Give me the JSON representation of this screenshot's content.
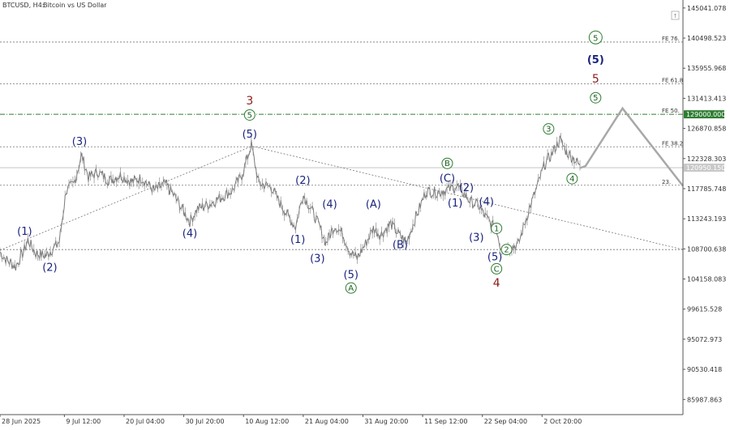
{
  "header": {
    "symbol": "BTCUSD, H4:",
    "description": "Bitcoin vs US Dollar"
  },
  "chart_data": {
    "type": "line",
    "series_style": "candlestick-approximated",
    "title": "",
    "xlabel": "",
    "ylabel": "",
    "ylim": [
      83700,
      146000
    ],
    "y_ticks": [
      145041.078,
      140498.523,
      135955.968,
      131413.413,
      126870.858,
      122328.303,
      117785.748,
      113243.193,
      108700.638,
      104158.083,
      99615.528,
      95072.973,
      90530.418,
      85987.863
    ],
    "x_ticks": [
      {
        "label": "28 Jun 2025",
        "t": 0
      },
      {
        "label": "9 Jul 12:00",
        "t": 11.5
      },
      {
        "label": "20 Jul 04:00",
        "t": 22.17
      },
      {
        "label": "30 Jul 20:00",
        "t": 32.83
      },
      {
        "label": "10 Aug 12:00",
        "t": 43.5
      },
      {
        "label": "21 Aug 04:00",
        "t": 54.17
      },
      {
        "label": "31 Aug 20:00",
        "t": 64.83
      },
      {
        "label": "11 Sep 12:00",
        "t": 75.5
      },
      {
        "label": "22 Sep 04:00",
        "t": 86.17
      },
      {
        "label": "2 Oct 20:00",
        "t": 96.83
      }
    ],
    "x_range_days": [
      0,
      122
    ],
    "price_path": [
      [
        0,
        108200
      ],
      [
        1.2,
        107000
      ],
      [
        2.8,
        106000
      ],
      [
        4.2,
        108300
      ],
      [
        5,
        110000
      ],
      [
        6.4,
        108000
      ],
      [
        8.2,
        107700
      ],
      [
        9.8,
        109000
      ],
      [
        10.6,
        109800
      ],
      [
        11.8,
        117500
      ],
      [
        13.2,
        118500
      ],
      [
        14.6,
        122800
      ],
      [
        15.8,
        119500
      ],
      [
        17.5,
        120300
      ],
      [
        19.5,
        119000
      ],
      [
        21.5,
        119800
      ],
      [
        23.5,
        118800
      ],
      [
        25.3,
        119400
      ],
      [
        27.5,
        117500
      ],
      [
        29.5,
        118500
      ],
      [
        31.3,
        116500
      ],
      [
        33.9,
        112800
      ],
      [
        35.3,
        114800
      ],
      [
        37.5,
        115500
      ],
      [
        39.5,
        116500
      ],
      [
        41.5,
        117500
      ],
      [
        43.2,
        119800
      ],
      [
        44.9,
        124400
      ],
      [
        46.2,
        118600
      ],
      [
        48.5,
        118000
      ],
      [
        50,
        115600
      ],
      [
        51.8,
        113200
      ],
      [
        52.8,
        112000
      ],
      [
        54.1,
        116900
      ],
      [
        55.8,
        114400
      ],
      [
        57.2,
        111800
      ],
      [
        58.2,
        109600
      ],
      [
        59.8,
        112200
      ],
      [
        61.2,
        111000
      ],
      [
        62.5,
        108300
      ],
      [
        63.8,
        107300
      ],
      [
        65.3,
        109500
      ],
      [
        66.7,
        111800
      ],
      [
        68,
        110800
      ],
      [
        69.8,
        112500
      ],
      [
        71.3,
        110800
      ],
      [
        72.6,
        109700
      ],
      [
        74.1,
        113100
      ],
      [
        76.1,
        117400
      ],
      [
        78.3,
        117200
      ],
      [
        80.2,
        117700
      ],
      [
        81.6,
        118200
      ],
      [
        82.6,
        117300
      ],
      [
        84.1,
        115800
      ],
      [
        85.5,
        115200
      ],
      [
        86.5,
        113800
      ],
      [
        88.4,
        111800
      ],
      [
        88.7,
        111900
      ],
      [
        89.3,
        109300
      ],
      [
        90.2,
        108700
      ],
      [
        91.6,
        109000
      ],
      [
        92.6,
        109400
      ],
      [
        94,
        113300
      ],
      [
        95.7,
        117500
      ],
      [
        97.3,
        121500
      ],
      [
        98.5,
        122900
      ],
      [
        100,
        125200
      ],
      [
        101.2,
        123300
      ],
      [
        102.4,
        122400
      ],
      [
        103.6,
        121300
      ]
    ],
    "projection_path": [
      [
        103.6,
        120900
      ],
      [
        104.6,
        121200
      ],
      [
        111.2,
        129900
      ],
      [
        122,
        118200
      ]
    ],
    "trend_lines": [
      {
        "name": "support",
        "points": [
          [
            0,
            108500
          ],
          [
            45,
            124200
          ]
        ]
      },
      {
        "name": "resistance",
        "points": [
          [
            45,
            124200
          ],
          [
            122,
            108600
          ]
        ]
      }
    ],
    "horizontal_levels": [
      {
        "label": "FE 76.",
        "price": 139900,
        "style": "dotted"
      },
      {
        "label": "FE 61.8",
        "price": 133600,
        "style": "dotted"
      },
      {
        "label": "FE 50.",
        "price": 129000,
        "style": "dashdot-green",
        "badge": "129000.000"
      },
      {
        "label": "FE 38.2",
        "price": 124100,
        "style": "dotted"
      },
      {
        "label": "",
        "price": 120950,
        "style": "current",
        "badge": "120950.150"
      },
      {
        "label": "23.",
        "price": 118300,
        "style": "dotted"
      },
      {
        "label": "",
        "price": 108600,
        "style": "dotted"
      }
    ],
    "wave_labels": [
      {
        "text": "(1)",
        "t": 4.4,
        "price": 111400,
        "color": "blue"
      },
      {
        "text": "(2)",
        "t": 8.9,
        "price": 106000,
        "color": "blue"
      },
      {
        "text": "(3)",
        "t": 14.2,
        "price": 125000,
        "color": "blue"
      },
      {
        "text": "(4)",
        "t": 33.9,
        "price": 111100,
        "color": "blue"
      },
      {
        "text": "3",
        "t": 44.6,
        "price": 131100,
        "color": "red"
      },
      {
        "text": "5",
        "t": 44.6,
        "price": 128900,
        "color": "green-circle"
      },
      {
        "text": "(5)",
        "t": 44.6,
        "price": 126100,
        "color": "blue"
      },
      {
        "text": "(2)",
        "t": 54.1,
        "price": 119100,
        "color": "blue"
      },
      {
        "text": "(1)",
        "t": 53.2,
        "price": 110200,
        "color": "blue"
      },
      {
        "text": "(4)",
        "t": 58.9,
        "price": 115500,
        "color": "blue"
      },
      {
        "text": "(3)",
        "t": 56.7,
        "price": 107300,
        "color": "blue"
      },
      {
        "text": "(A)",
        "t": 66.7,
        "price": 115500,
        "color": "blue"
      },
      {
        "text": "(5)",
        "t": 62.7,
        "price": 104900,
        "color": "blue"
      },
      {
        "text": "A",
        "t": 62.7,
        "price": 102800,
        "color": "green-circle"
      },
      {
        "text": "(B)",
        "t": 71.5,
        "price": 109400,
        "color": "blue"
      },
      {
        "text": "B",
        "t": 79.9,
        "price": 121600,
        "color": "green-circle"
      },
      {
        "text": "(C)",
        "t": 79.9,
        "price": 119400,
        "color": "blue"
      },
      {
        "text": "(2)",
        "t": 83.3,
        "price": 117900,
        "color": "blue",
        "small": true
      },
      {
        "text": "(1)",
        "t": 81.3,
        "price": 115600,
        "color": "blue",
        "small": true
      },
      {
        "text": "(4)",
        "t": 86.9,
        "price": 115800,
        "color": "blue",
        "small": true
      },
      {
        "text": "(3)",
        "t": 85.1,
        "price": 110400,
        "color": "blue",
        "small": true
      },
      {
        "text": "1",
        "t": 88.7,
        "price": 111800,
        "color": "green-circle"
      },
      {
        "text": "(5)",
        "t": 88.4,
        "price": 107500,
        "color": "blue",
        "small": true
      },
      {
        "text": "2",
        "t": 90.5,
        "price": 108600,
        "color": "green-circle"
      },
      {
        "text": "C",
        "t": 88.7,
        "price": 105700,
        "color": "green-circle"
      },
      {
        "text": "4",
        "t": 88.7,
        "price": 103600,
        "color": "red"
      },
      {
        "text": "3",
        "t": 98,
        "price": 126800,
        "color": "green-circle"
      },
      {
        "text": "4",
        "t": 102.2,
        "price": 119300,
        "color": "green-circle"
      },
      {
        "text": "5",
        "t": 106.4,
        "price": 140600,
        "color": "green-circle",
        "big": true
      },
      {
        "text": "(5)",
        "t": 106.4,
        "price": 137500,
        "color": "blue",
        "big": true
      },
      {
        "text": "5",
        "t": 106.4,
        "price": 134400,
        "color": "red"
      },
      {
        "text": "5",
        "t": 106.4,
        "price": 131500,
        "color": "green-circle"
      }
    ]
  }
}
